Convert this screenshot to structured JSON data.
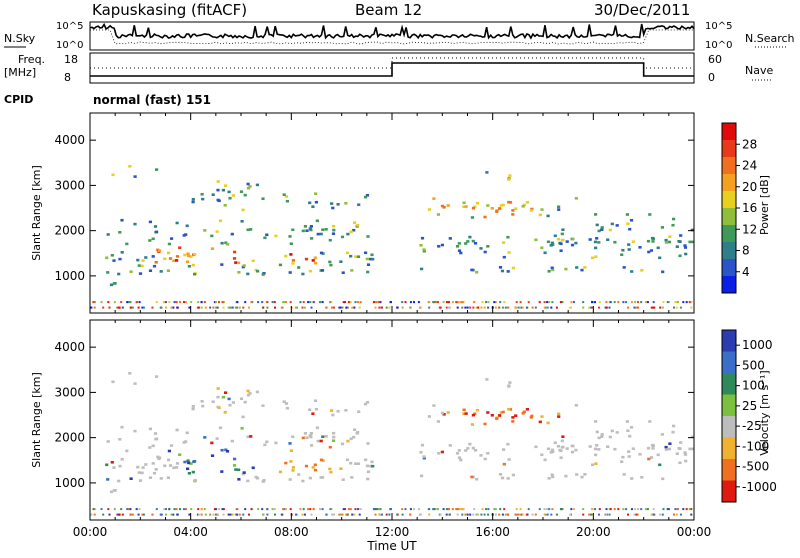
{
  "header": {
    "station": "Kapuskasing (fitACF)",
    "beam": "Beam 12",
    "date": "30/Dec/2011"
  },
  "panels": {
    "nsky_label": "N.Sky",
    "nsky_ticks": [
      "10^5",
      "10^0"
    ],
    "nsearch_label": "N.Search",
    "nsearch_ticks": [
      "10^5",
      "10^0"
    ],
    "freq_label": "Freq.",
    "freq_unit": "[MHz]",
    "freq_ticks": [
      "18",
      "8"
    ],
    "nave_label": "Nave",
    "nave_ticks": [
      "60",
      "0"
    ],
    "cpid_label": "CPID",
    "cpid_text": "normal (fast) 151"
  },
  "chart_data": [
    {
      "type": "heatmap",
      "title": "",
      "ylabel": "Slant Range [km]",
      "xlabel": "",
      "x_ticks": [
        "00:00",
        "04:00",
        "08:00",
        "12:00",
        "16:00",
        "20:00",
        "00:00"
      ],
      "xlim_hours": [
        0,
        24
      ],
      "ylim_km": [
        180,
        4600
      ],
      "y_ticks": [
        "1000",
        "2000",
        "3000",
        "4000"
      ],
      "y_tick_values": [
        1000,
        2000,
        3000,
        4000
      ],
      "colorbar": {
        "label": "Power [dB]",
        "ticks": [
          "4",
          "8",
          "12",
          "16",
          "20",
          "24",
          "28"
        ],
        "tick_values": [
          4,
          8,
          12,
          16,
          20,
          24,
          28
        ],
        "range": [
          0,
          32
        ],
        "colors": [
          "#0a1ee6",
          "#2a55c8",
          "#2f7f8a",
          "#3f9a5a",
          "#8fbf3a",
          "#e8d020",
          "#f5a020",
          "#f07020",
          "#e83a1a",
          "#e00a0a"
        ]
      }
    },
    {
      "type": "heatmap",
      "title": "",
      "ylabel": "Slant Range [km]",
      "xlabel": "Time UT",
      "x_ticks": [
        "00:00",
        "04:00",
        "08:00",
        "12:00",
        "16:00",
        "20:00",
        "00:00"
      ],
      "xlim_hours": [
        0,
        24
      ],
      "ylim_km": [
        180,
        4600
      ],
      "y_ticks": [
        "1000",
        "2000",
        "3000",
        "4000"
      ],
      "y_tick_values": [
        1000,
        2000,
        3000,
        4000
      ],
      "colorbar": {
        "label": "Velocity [m s⁻¹]",
        "ticks": [
          "1000",
          "500",
          "100",
          "25",
          "-25",
          "-100",
          "-500",
          "-1000"
        ],
        "colors": [
          "#2a3cb0",
          "#3a6ec8",
          "#2f8a5a",
          "#7cc040",
          "#bdbdbd",
          "#f0b030",
          "#f07020",
          "#e01a10"
        ]
      }
    }
  ]
}
